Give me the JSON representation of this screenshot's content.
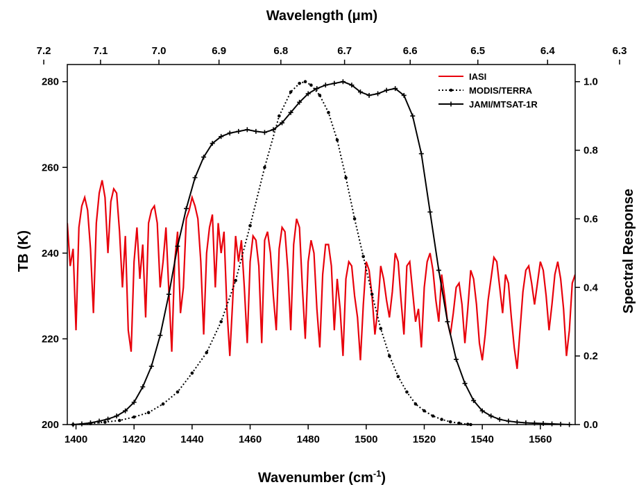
{
  "chart_data": {
    "type": "line",
    "x_bottom": {
      "label_main": "Wavenumber (cm",
      "label_sup": "-1",
      "label_end": ")",
      "range": [
        1397,
        1572
      ],
      "ticks": [
        1400,
        1420,
        1440,
        1460,
        1480,
        1500,
        1520,
        1540,
        1560
      ]
    },
    "x_top": {
      "label": "Wavelength (μm)",
      "ticks": [
        7.2,
        7.1,
        7.0,
        6.9,
        6.8,
        6.7,
        6.6,
        6.5,
        6.4,
        6.3
      ],
      "tick_labels": [
        "7.2",
        "7.1",
        "7.0",
        "6.9",
        "6.8",
        "6.7",
        "6.6",
        "6.5",
        "6.4",
        "6.3"
      ]
    },
    "y_left": {
      "label": "TB (K)",
      "range": [
        200,
        284
      ],
      "ticks": [
        200,
        220,
        240,
        260,
        280
      ]
    },
    "y_right": {
      "label": "Spectral Response",
      "range": [
        0,
        1.0
      ],
      "ticks": [
        0.0,
        0.2,
        0.4,
        0.6,
        0.8,
        1.0
      ],
      "tick_labels": [
        "0.0",
        "0.2",
        "0.4",
        "0.6",
        "0.8",
        "1.0"
      ]
    },
    "legend_position": "top-right",
    "series": [
      {
        "name": "IASI",
        "axis": "left",
        "color": "#e8000b",
        "style": "solid",
        "x": [
          1397,
          1398,
          1399,
          1400,
          1401,
          1402,
          1403,
          1404,
          1405,
          1406,
          1407,
          1408,
          1409,
          1410,
          1411,
          1412,
          1413,
          1414,
          1415,
          1416,
          1417,
          1418,
          1419,
          1420,
          1421,
          1422,
          1423,
          1424,
          1425,
          1426,
          1427,
          1428,
          1429,
          1430,
          1431,
          1432,
          1433,
          1434,
          1435,
          1436,
          1437,
          1438,
          1439,
          1440,
          1441,
          1442,
          1443,
          1444,
          1445,
          1446,
          1447,
          1448,
          1449,
          1450,
          1451,
          1452,
          1453,
          1454,
          1455,
          1456,
          1457,
          1458,
          1459,
          1460,
          1461,
          1462,
          1463,
          1464,
          1465,
          1466,
          1467,
          1468,
          1469,
          1470,
          1471,
          1472,
          1473,
          1474,
          1475,
          1476,
          1477,
          1478,
          1479,
          1480,
          1481,
          1482,
          1483,
          1484,
          1485,
          1486,
          1487,
          1488,
          1489,
          1490,
          1491,
          1492,
          1493,
          1494,
          1495,
          1496,
          1497,
          1498,
          1499,
          1500,
          1501,
          1502,
          1503,
          1504,
          1505,
          1506,
          1507,
          1508,
          1509,
          1510,
          1511,
          1512,
          1513,
          1514,
          1515,
          1516,
          1517,
          1518,
          1519,
          1520,
          1521,
          1522,
          1523,
          1524,
          1525,
          1526,
          1527,
          1528,
          1529,
          1530,
          1531,
          1532,
          1533,
          1534,
          1535,
          1536,
          1537,
          1538,
          1539,
          1540,
          1541,
          1542,
          1543,
          1544,
          1545,
          1546,
          1547,
          1548,
          1549,
          1550,
          1551,
          1552,
          1553,
          1554,
          1555,
          1556,
          1557,
          1558,
          1559,
          1560,
          1561,
          1562,
          1563,
          1564,
          1565,
          1566,
          1567,
          1568,
          1569,
          1570,
          1571,
          1572
        ],
        "y": [
          247,
          237,
          241,
          222,
          246,
          251,
          253,
          250,
          241,
          226,
          247,
          254,
          257,
          253,
          240,
          252,
          255,
          254,
          245,
          232,
          244,
          222,
          217,
          238,
          246,
          234,
          242,
          225,
          247,
          250,
          251,
          247,
          232,
          238,
          246,
          231,
          217,
          238,
          245,
          226,
          232,
          248,
          250,
          253,
          251,
          248,
          238,
          221,
          240,
          246,
          249,
          232,
          247,
          240,
          245,
          227,
          216,
          229,
          244,
          238,
          243,
          232,
          219,
          238,
          244,
          243,
          237,
          219,
          243,
          245,
          240,
          230,
          222,
          241,
          246,
          245,
          236,
          222,
          242,
          248,
          246,
          232,
          220,
          238,
          243,
          240,
          227,
          218,
          235,
          242,
          242,
          237,
          222,
          234,
          227,
          216,
          234,
          238,
          237,
          230,
          225,
          215,
          228,
          238,
          236,
          230,
          221,
          227,
          237,
          234,
          229,
          225,
          231,
          240,
          238,
          229,
          221,
          237,
          238,
          231,
          224,
          227,
          218,
          232,
          238,
          240,
          236,
          229,
          224,
          235,
          230,
          224,
          221,
          226,
          232,
          233,
          228,
          219,
          227,
          236,
          234,
          228,
          219,
          215,
          221,
          229,
          234,
          239,
          238,
          232,
          226,
          235,
          233,
          225,
          218,
          213,
          222,
          231,
          236,
          237,
          233,
          228,
          233,
          238,
          236,
          230,
          222,
          228,
          235,
          238,
          234,
          227,
          216,
          222,
          233,
          235
        ]
      },
      {
        "name": "MODIS/TERRA",
        "axis": "right",
        "color": "#000000",
        "style": "dotted",
        "x": [
          1399,
          1405,
          1410,
          1415,
          1420,
          1425,
          1430,
          1435,
          1440,
          1445,
          1450,
          1455,
          1460,
          1465,
          1470,
          1474,
          1477,
          1479,
          1481,
          1484,
          1487,
          1490,
          1493,
          1496,
          1499,
          1502,
          1505,
          1508,
          1511,
          1514,
          1517,
          1520,
          1523,
          1526,
          1529,
          1532,
          1535,
          1536
        ],
        "y": [
          0.0,
          0.003,
          0.007,
          0.012,
          0.022,
          0.035,
          0.06,
          0.095,
          0.15,
          0.21,
          0.3,
          0.42,
          0.58,
          0.75,
          0.9,
          0.97,
          0.995,
          1.0,
          0.99,
          0.96,
          0.91,
          0.83,
          0.72,
          0.6,
          0.49,
          0.38,
          0.28,
          0.2,
          0.14,
          0.095,
          0.06,
          0.04,
          0.025,
          0.015,
          0.008,
          0.004,
          0.001,
          0.0
        ]
      },
      {
        "name": "JAMI/MTSAT-1R",
        "axis": "right",
        "color": "#000000",
        "style": "solid-plus",
        "x": [
          1399,
          1402,
          1405,
          1408,
          1411,
          1414,
          1417,
          1420,
          1423,
          1426,
          1429,
          1432,
          1435,
          1438,
          1441,
          1444,
          1447,
          1450,
          1453,
          1456,
          1459,
          1462,
          1465,
          1468,
          1471,
          1474,
          1477,
          1480,
          1483,
          1486,
          1489,
          1492,
          1495,
          1498,
          1501,
          1504,
          1507,
          1510,
          1513,
          1516,
          1519,
          1522,
          1525,
          1528,
          1531,
          1534,
          1537,
          1540,
          1543,
          1546,
          1549,
          1552,
          1555,
          1558,
          1561,
          1564,
          1567,
          1570
        ],
        "y": [
          0.0,
          0.002,
          0.005,
          0.01,
          0.016,
          0.025,
          0.04,
          0.065,
          0.11,
          0.17,
          0.26,
          0.38,
          0.52,
          0.63,
          0.72,
          0.78,
          0.82,
          0.84,
          0.85,
          0.855,
          0.86,
          0.855,
          0.852,
          0.86,
          0.88,
          0.91,
          0.94,
          0.965,
          0.98,
          0.99,
          0.995,
          1.0,
          0.99,
          0.97,
          0.96,
          0.965,
          0.975,
          0.98,
          0.96,
          0.9,
          0.79,
          0.62,
          0.45,
          0.3,
          0.19,
          0.12,
          0.07,
          0.04,
          0.025,
          0.015,
          0.01,
          0.007,
          0.005,
          0.004,
          0.003,
          0.002,
          0.001,
          0.0
        ]
      }
    ]
  }
}
